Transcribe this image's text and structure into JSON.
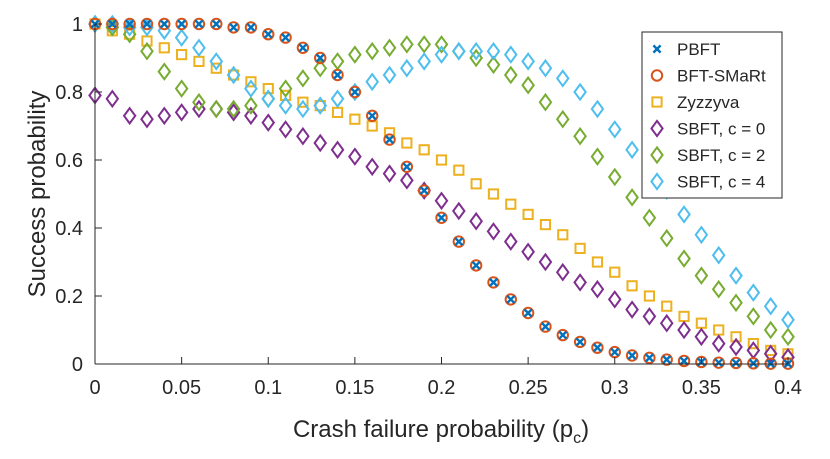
{
  "chart_data": {
    "type": "scatter",
    "title": "",
    "xlabel": "Crash failure probability (p",
    "xlabel_sub": "c",
    "xlabel_close": ")",
    "ylabel": "Success probability",
    "xlim": [
      0,
      0.4
    ],
    "ylim": [
      0,
      1
    ],
    "xticks": [
      0,
      0.05,
      0.1,
      0.15,
      0.2,
      0.25,
      0.3,
      0.35,
      0.4
    ],
    "xtick_labels": [
      "0",
      "0.05",
      "0.1",
      "0.15",
      "0.2",
      "0.25",
      "0.3",
      "0.35",
      "0.4"
    ],
    "yticks": [
      0,
      0.2,
      0.4,
      0.6,
      0.8,
      1
    ],
    "ytick_labels": [
      "0",
      "0.2",
      "0.4",
      "0.6",
      "0.8",
      "1"
    ],
    "legend_position": "top-right",
    "x": [
      0,
      0.01,
      0.02,
      0.03,
      0.04,
      0.05,
      0.06,
      0.07,
      0.08,
      0.09,
      0.1,
      0.11,
      0.12,
      0.13,
      0.14,
      0.15,
      0.16,
      0.17,
      0.18,
      0.19,
      0.2,
      0.21,
      0.22,
      0.23,
      0.24,
      0.25,
      0.26,
      0.27,
      0.28,
      0.29,
      0.3,
      0.31,
      0.32,
      0.33,
      0.34,
      0.35,
      0.36,
      0.37,
      0.38,
      0.39,
      0.4
    ],
    "series": [
      {
        "name": "PBFT",
        "marker": "x",
        "color": "#0072BD",
        "values": [
          1,
          1,
          1,
          1,
          1,
          1,
          1,
          1,
          0.99,
          0.99,
          0.97,
          0.96,
          0.93,
          0.9,
          0.85,
          0.8,
          0.73,
          0.66,
          0.58,
          0.51,
          0.43,
          0.36,
          0.29,
          0.24,
          0.19,
          0.15,
          0.11,
          0.085,
          0.065,
          0.048,
          0.035,
          0.025,
          0.018,
          0.013,
          0.009,
          0.006,
          0.004,
          0.003,
          0.002,
          0.001,
          0.001
        ]
      },
      {
        "name": "BFT-SMaRt",
        "marker": "o",
        "color": "#D95319",
        "values": [
          1,
          1,
          1,
          1,
          1,
          1,
          1,
          1,
          0.99,
          0.99,
          0.97,
          0.96,
          0.93,
          0.9,
          0.85,
          0.8,
          0.73,
          0.66,
          0.58,
          0.51,
          0.43,
          0.36,
          0.29,
          0.24,
          0.19,
          0.15,
          0.11,
          0.085,
          0.065,
          0.048,
          0.035,
          0.025,
          0.018,
          0.013,
          0.009,
          0.006,
          0.004,
          0.003,
          0.002,
          0.001,
          0.001
        ]
      },
      {
        "name": "Zyzzyva",
        "marker": "s",
        "color": "#EDB120",
        "values": [
          1,
          0.98,
          0.97,
          0.95,
          0.93,
          0.91,
          0.89,
          0.87,
          0.85,
          0.83,
          0.81,
          0.79,
          0.77,
          0.76,
          0.74,
          0.72,
          0.7,
          0.68,
          0.65,
          0.63,
          0.6,
          0.57,
          0.53,
          0.5,
          0.47,
          0.44,
          0.41,
          0.38,
          0.34,
          0.3,
          0.27,
          0.23,
          0.2,
          0.17,
          0.14,
          0.12,
          0.1,
          0.08,
          0.06,
          0.04,
          0.03
        ]
      },
      {
        "name": "SBFT, c = 0",
        "marker": "d",
        "color": "#7E2F8E",
        "values": [
          0.79,
          0.78,
          0.73,
          0.72,
          0.73,
          0.74,
          0.75,
          0.75,
          0.74,
          0.73,
          0.71,
          0.69,
          0.67,
          0.65,
          0.63,
          0.61,
          0.58,
          0.56,
          0.54,
          0.51,
          0.48,
          0.45,
          0.42,
          0.39,
          0.36,
          0.33,
          0.3,
          0.27,
          0.24,
          0.22,
          0.19,
          0.16,
          0.14,
          0.12,
          0.1,
          0.08,
          0.06,
          0.05,
          0.04,
          0.03,
          0.02
        ]
      },
      {
        "name": "SBFT, c = 2",
        "marker": "d",
        "color": "#77AC30",
        "values": [
          1,
          0.99,
          0.97,
          0.92,
          0.86,
          0.81,
          0.77,
          0.75,
          0.75,
          0.76,
          0.78,
          0.81,
          0.84,
          0.87,
          0.89,
          0.91,
          0.92,
          0.93,
          0.94,
          0.94,
          0.94,
          0.92,
          0.9,
          0.88,
          0.85,
          0.82,
          0.77,
          0.72,
          0.67,
          0.61,
          0.55,
          0.49,
          0.43,
          0.37,
          0.31,
          0.26,
          0.22,
          0.18,
          0.14,
          0.1,
          0.08
        ]
      },
      {
        "name": "SBFT, c = 4",
        "marker": "d",
        "color": "#4DBEEE",
        "values": [
          1,
          1,
          0.99,
          0.99,
          0.98,
          0.96,
          0.93,
          0.89,
          0.85,
          0.81,
          0.78,
          0.76,
          0.75,
          0.76,
          0.78,
          0.8,
          0.83,
          0.85,
          0.87,
          0.89,
          0.91,
          0.92,
          0.92,
          0.92,
          0.91,
          0.89,
          0.87,
          0.84,
          0.8,
          0.75,
          0.69,
          0.63,
          0.57,
          0.51,
          0.44,
          0.38,
          0.32,
          0.26,
          0.21,
          0.17,
          0.13
        ]
      }
    ]
  }
}
